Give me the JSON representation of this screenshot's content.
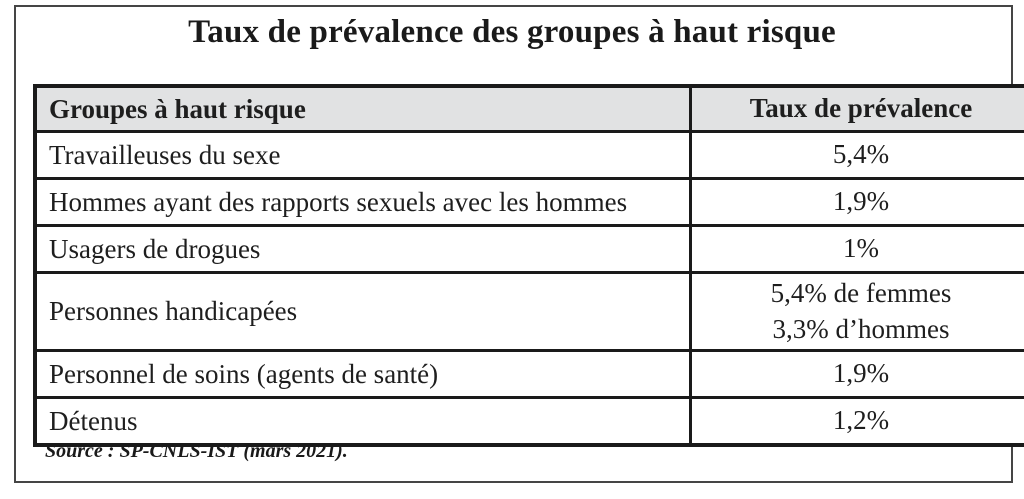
{
  "title": "Taux de prévalence des groupes à haut risque",
  "table": {
    "headers": {
      "group": "Groupes à haut risque",
      "rate": "Taux de prévalence"
    },
    "rows": [
      {
        "group": "Travailleuses du sexe",
        "rate": "5,4%"
      },
      {
        "group": "Hommes ayant des rapports sexuels avec les hommes",
        "rate": "1,9%"
      },
      {
        "group": "Usagers de drogues",
        "rate": "1%"
      },
      {
        "group": "Personnes handicapées",
        "rate": "5,4% de femmes\n3,3% d’hommes"
      },
      {
        "group": "Personnel de soins (agents de santé)",
        "rate": "1,9%"
      },
      {
        "group": "Détenus",
        "rate": "1,2%"
      }
    ]
  },
  "source": "Source : SP-CNLS-IST (mars 2021).",
  "colors": {
    "header_bg": "#e1e2e3",
    "table_border": "#1a1a1a",
    "frame_border": "#454545",
    "text": "#1a1a1a"
  }
}
